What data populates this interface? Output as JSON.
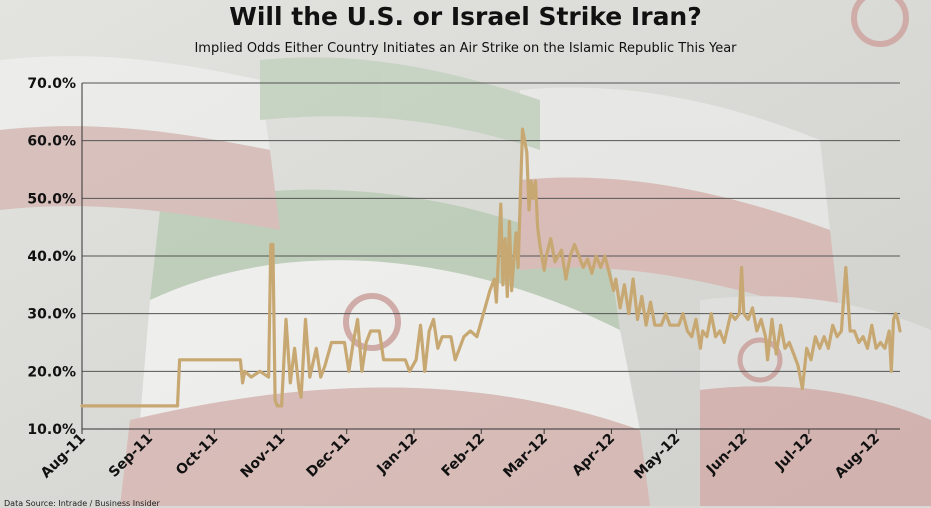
{
  "chart_data": {
    "type": "line",
    "title": "Will the U.S. or Israel Strike Iran?",
    "subtitle": "Implied Odds Either Country Initiates an Air Strike on the Islamic Republic This Year",
    "xlabel": "",
    "ylabel": "",
    "ylim": [
      10,
      70
    ],
    "yticks": [
      "70.0%",
      "60.0%",
      "50.0%",
      "40.0%",
      "30.0%",
      "20.0%",
      "10.0%"
    ],
    "xticks": [
      "Aug-11",
      "Sep-11",
      "Oct-11",
      "Nov-11",
      "Dec-11",
      "Jan-12",
      "Feb-12",
      "Mar-12",
      "Apr-12",
      "May-12",
      "Jun-12",
      "Jul-12",
      "Aug-12"
    ],
    "grid": true,
    "legend": "none",
    "line_color": "#c8a872",
    "series": [
      {
        "name": "",
        "points": [
          [
            "2011-08-01",
            14.0
          ],
          [
            "2011-09-14",
            14.0
          ],
          [
            "2011-09-15",
            22.0
          ],
          [
            "2011-10-13",
            22.0
          ],
          [
            "2011-10-14",
            18.0
          ],
          [
            "2011-10-15",
            20.0
          ],
          [
            "2011-10-18",
            19.0
          ],
          [
            "2011-10-22",
            20.0
          ],
          [
            "2011-10-26",
            19.0
          ],
          [
            "2011-10-27",
            42.0
          ],
          [
            "2011-10-28",
            42.0
          ],
          [
            "2011-10-29",
            15.0
          ],
          [
            "2011-10-30",
            14.0
          ],
          [
            "2011-11-01",
            14.0
          ],
          [
            "2011-11-03",
            29.0
          ],
          [
            "2011-11-05",
            18.0
          ],
          [
            "2011-11-07",
            24.0
          ],
          [
            "2011-11-09",
            17.0
          ],
          [
            "2011-11-10",
            15.5
          ],
          [
            "2011-11-12",
            29.0
          ],
          [
            "2011-11-14",
            19.0
          ],
          [
            "2011-11-17",
            24.0
          ],
          [
            "2011-11-19",
            19.0
          ],
          [
            "2011-11-21",
            21.0
          ],
          [
            "2011-11-24",
            25.0
          ],
          [
            "2011-11-30",
            25.0
          ],
          [
            "2011-12-02",
            20.0
          ],
          [
            "2011-12-04",
            25.0
          ],
          [
            "2011-12-06",
            29.0
          ],
          [
            "2011-12-08",
            20.0
          ],
          [
            "2011-12-10",
            25.0
          ],
          [
            "2011-12-12",
            27.0
          ],
          [
            "2011-12-16",
            27.0
          ],
          [
            "2011-12-18",
            22.0
          ],
          [
            "2011-12-28",
            22.0
          ],
          [
            "2011-12-30",
            20.0
          ],
          [
            "2012-01-02",
            22.0
          ],
          [
            "2012-01-04",
            28.0
          ],
          [
            "2012-01-06",
            20.0
          ],
          [
            "2012-01-08",
            27.0
          ],
          [
            "2012-01-10",
            29.0
          ],
          [
            "2012-01-12",
            24.0
          ],
          [
            "2012-01-14",
            26.0
          ],
          [
            "2012-01-18",
            26.0
          ],
          [
            "2012-01-20",
            22.0
          ],
          [
            "2012-01-24",
            26.0
          ],
          [
            "2012-01-27",
            27.0
          ],
          [
            "2012-01-30",
            26.0
          ],
          [
            "2012-02-02",
            30.0
          ],
          [
            "2012-02-05",
            34.0
          ],
          [
            "2012-02-07",
            36.0
          ],
          [
            "2012-02-08",
            32.0
          ],
          [
            "2012-02-10",
            49.0
          ],
          [
            "2012-02-11",
            35.0
          ],
          [
            "2012-02-12",
            43.0
          ],
          [
            "2012-02-13",
            33.0
          ],
          [
            "2012-02-14",
            46.0
          ],
          [
            "2012-02-15",
            34.0
          ],
          [
            "2012-02-17",
            44.0
          ],
          [
            "2012-02-18",
            38.0
          ],
          [
            "2012-02-20",
            62.0
          ],
          [
            "2012-02-22",
            58.0
          ],
          [
            "2012-02-23",
            48.0
          ],
          [
            "2012-02-24",
            53.0
          ],
          [
            "2012-02-25",
            50.0
          ],
          [
            "2012-02-26",
            53.0
          ],
          [
            "2012-02-27",
            45.0
          ],
          [
            "2012-02-28",
            42.0
          ],
          [
            "2012-03-01",
            37.5
          ],
          [
            "2012-03-02",
            40.0
          ],
          [
            "2012-03-04",
            43.0
          ],
          [
            "2012-03-06",
            39.0
          ],
          [
            "2012-03-09",
            41.0
          ],
          [
            "2012-03-11",
            36.0
          ],
          [
            "2012-03-13",
            40.0
          ],
          [
            "2012-03-15",
            42.0
          ],
          [
            "2012-03-17",
            40.0
          ],
          [
            "2012-03-19",
            38.0
          ],
          [
            "2012-03-21",
            39.5
          ],
          [
            "2012-03-23",
            37.0
          ],
          [
            "2012-03-25",
            40.0
          ],
          [
            "2012-03-27",
            38.0
          ],
          [
            "2012-03-29",
            40.0
          ],
          [
            "2012-03-31",
            37.0
          ],
          [
            "2012-04-02",
            34.0
          ],
          [
            "2012-04-03",
            36.0
          ],
          [
            "2012-04-05",
            31.0
          ],
          [
            "2012-04-07",
            35.0
          ],
          [
            "2012-04-09",
            30.0
          ],
          [
            "2012-04-11",
            36.0
          ],
          [
            "2012-04-13",
            29.0
          ],
          [
            "2012-04-15",
            33.0
          ],
          [
            "2012-04-17",
            28.0
          ],
          [
            "2012-04-19",
            32.0
          ],
          [
            "2012-04-21",
            28.0
          ],
          [
            "2012-04-24",
            28.0
          ],
          [
            "2012-04-26",
            30.0
          ],
          [
            "2012-04-28",
            28.0
          ],
          [
            "2012-05-02",
            28.0
          ],
          [
            "2012-05-04",
            30.0
          ],
          [
            "2012-05-06",
            27.0
          ],
          [
            "2012-05-08",
            26.0
          ],
          [
            "2012-05-10",
            29.0
          ],
          [
            "2012-05-12",
            24.0
          ],
          [
            "2012-05-13",
            27.0
          ],
          [
            "2012-05-15",
            26.0
          ],
          [
            "2012-05-17",
            30.0
          ],
          [
            "2012-05-19",
            26.0
          ],
          [
            "2012-05-21",
            27.0
          ],
          [
            "2012-05-23",
            25.0
          ],
          [
            "2012-05-26",
            30.0
          ],
          [
            "2012-05-28",
            29.0
          ],
          [
            "2012-05-30",
            30.0
          ],
          [
            "2012-05-31",
            38.0
          ],
          [
            "2012-06-01",
            30.0
          ],
          [
            "2012-06-03",
            29.0
          ],
          [
            "2012-06-05",
            31.0
          ],
          [
            "2012-06-07",
            27.0
          ],
          [
            "2012-06-09",
            29.0
          ],
          [
            "2012-06-11",
            26.0
          ],
          [
            "2012-06-12",
            22.0
          ],
          [
            "2012-06-14",
            29.0
          ],
          [
            "2012-06-16",
            23.0
          ],
          [
            "2012-06-18",
            28.0
          ],
          [
            "2012-06-20",
            24.0
          ],
          [
            "2012-06-22",
            25.0
          ],
          [
            "2012-06-24",
            23.0
          ],
          [
            "2012-06-26",
            21.0
          ],
          [
            "2012-06-28",
            17.0
          ],
          [
            "2012-06-30",
            24.0
          ],
          [
            "2012-07-02",
            22.0
          ],
          [
            "2012-07-04",
            26.0
          ],
          [
            "2012-07-06",
            24.0
          ],
          [
            "2012-07-08",
            26.0
          ],
          [
            "2012-07-10",
            24.0
          ],
          [
            "2012-07-12",
            28.0
          ],
          [
            "2012-07-14",
            26.0
          ],
          [
            "2012-07-16",
            27.0
          ],
          [
            "2012-07-18",
            38.0
          ],
          [
            "2012-07-20",
            27.0
          ],
          [
            "2012-07-22",
            27.0
          ],
          [
            "2012-07-24",
            25.0
          ],
          [
            "2012-07-26",
            26.0
          ],
          [
            "2012-07-28",
            24.0
          ],
          [
            "2012-07-30",
            28.0
          ],
          [
            "2012-08-01",
            24.0
          ],
          [
            "2012-08-03",
            25.0
          ],
          [
            "2012-08-05",
            24.0
          ],
          [
            "2012-08-07",
            27.0
          ],
          [
            "2012-08-08",
            20.0
          ],
          [
            "2012-08-09",
            29.0
          ],
          [
            "2012-08-10",
            30.0
          ],
          [
            "2012-08-11",
            29.0
          ],
          [
            "2012-08-12",
            27.0
          ]
        ]
      }
    ]
  },
  "source_note": "Data Source: Intrade / Business Insider"
}
